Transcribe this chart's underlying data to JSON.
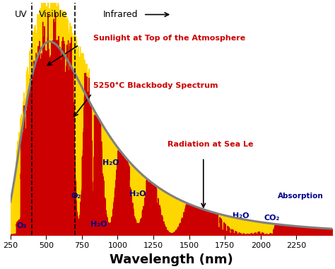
{
  "xmin": 250,
  "xmax": 2500,
  "ymin": 0,
  "ymax": 2.1,
  "xlabel": "Wavelength (nm)",
  "background_color": "#ffffff",
  "uv_label": "UV",
  "visible_label": "Visible",
  "infrared_label": "Infrared",
  "uv_line": 400,
  "vis_line": 700,
  "blackbody_label": "5250°C Blackbody Spectrum",
  "top_atm_label": "Sunlight at Top of the Atmosphere",
  "sea_level_label": "Radiation at Sea Le",
  "absorption_label": "Absorption",
  "o3_label": "O₃",
  "o2_label": "O₂",
  "co2_label": "CO₂",
  "yellow_color": "#FFD700",
  "red_color": "#CC0000",
  "blackbody_color": "#808080",
  "label_color_red": "#CC0000",
  "label_color_blue": "#00008B",
  "xticks": [
    250,
    500,
    750,
    1000,
    1250,
    1500,
    1750,
    2000,
    2250
  ],
  "xlabels": [
    "250",
    "500",
    "750",
    "1000",
    "1250",
    "1500",
    "1750",
    "2000",
    "2250"
  ]
}
